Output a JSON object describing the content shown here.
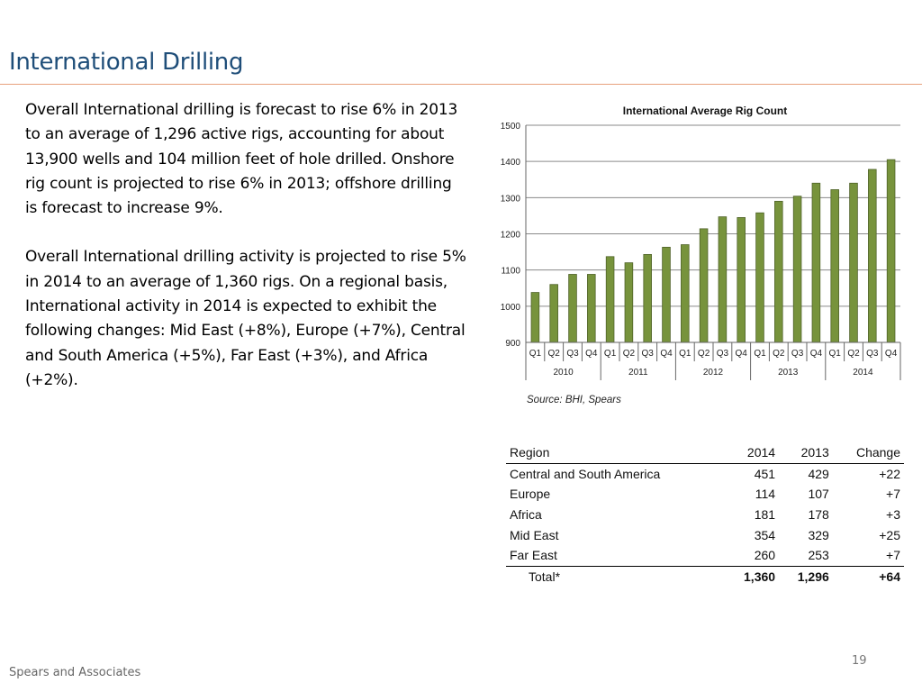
{
  "slide": {
    "title": "International Drilling",
    "paragraphs": [
      "Overall International drilling is forecast to rise 6% in 2013 to an average of 1,296 active rigs, accounting for about 13,900 wells and 104 million feet of hole drilled. Onshore rig count is projected to rise 6% in 2013; offshore drilling is forecast to increase 9%.",
      "Overall International drilling activity is projected to rise 5% in 2014 to an average of 1,360 rigs. On a regional basis, International activity in 2014 is expected to exhibit the following changes: Mid East (+8%), Europe (+7%), Central and South America (+5%), Far East (+3%), and Africa (+2%)."
    ],
    "footer": "Spears and Associates",
    "page_number": "19"
  },
  "chart_data": {
    "type": "bar",
    "title": "International Average Rig Count",
    "source": "Source: BHI, Spears",
    "xlabel": "",
    "ylabel": "",
    "ylim": [
      900,
      1500
    ],
    "yticks": [
      900,
      1000,
      1100,
      1200,
      1300,
      1400,
      1500
    ],
    "grid": true,
    "categories": [
      "Q1",
      "Q2",
      "Q3",
      "Q4",
      "Q1",
      "Q2",
      "Q3",
      "Q4",
      "Q1",
      "Q2",
      "Q3",
      "Q4",
      "Q1",
      "Q2",
      "Q3",
      "Q4",
      "Q1",
      "Q2",
      "Q3",
      "Q4"
    ],
    "groups": [
      "2010",
      "2011",
      "2012",
      "2013",
      "2014"
    ],
    "values": [
      1038,
      1060,
      1088,
      1088,
      1137,
      1120,
      1143,
      1163,
      1170,
      1214,
      1247,
      1245,
      1258,
      1290,
      1304,
      1340,
      1322,
      1340,
      1378,
      1405
    ],
    "bar_color": "#77933c"
  },
  "table": {
    "headers": [
      "Region",
      "2014",
      "2013",
      "Change"
    ],
    "rows": [
      [
        "Central and South America",
        "451",
        "429",
        "+22"
      ],
      [
        "Europe",
        "114",
        "107",
        "+7"
      ],
      [
        "Africa",
        "181",
        "178",
        "+3"
      ],
      [
        "Mid East",
        "354",
        "329",
        "+25"
      ],
      [
        "Far East",
        "260",
        "253",
        "+7"
      ]
    ],
    "total": [
      "Total*",
      "1,360",
      "1,296",
      "+64"
    ]
  }
}
